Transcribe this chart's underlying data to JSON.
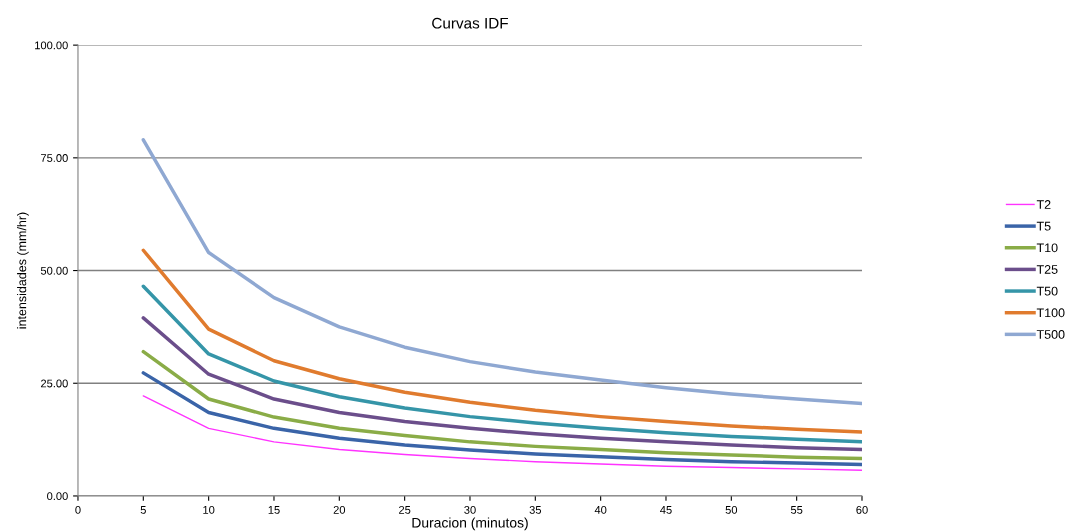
{
  "chart_data": {
    "type": "line",
    "title": "Curvas IDF",
    "xlabel": "Duracion (minutos)",
    "ylabel": "intensidades (mm/hr)",
    "x": [
      5,
      10,
      15,
      20,
      25,
      30,
      35,
      40,
      45,
      50,
      55,
      60
    ],
    "series": [
      {
        "name": "T2",
        "color": "#ff33ff",
        "values": [
          22.2,
          15,
          12,
          10.3,
          9.2,
          8.3,
          7.6,
          7.1,
          6.6,
          6.3,
          6,
          5.7
        ]
      },
      {
        "name": "T5",
        "color": "#3a64a8",
        "values": [
          27.3,
          18.5,
          15,
          12.8,
          11.3,
          10.2,
          9.3,
          8.7,
          8.1,
          7.6,
          7.3,
          7
        ]
      },
      {
        "name": "T10",
        "color": "#8aac47",
        "values": [
          32,
          21.5,
          17.5,
          15,
          13.4,
          12,
          11,
          10.3,
          9.6,
          9.1,
          8.6,
          8.3
        ]
      },
      {
        "name": "T25",
        "color": "#6b4e8b",
        "values": [
          39.5,
          27,
          21.5,
          18.5,
          16.5,
          15,
          13.8,
          12.8,
          12,
          11.3,
          10.7,
          10.3
        ]
      },
      {
        "name": "T50",
        "color": "#3595a8",
        "values": [
          46.5,
          31.5,
          25.5,
          22,
          19.5,
          17.6,
          16.2,
          15,
          14,
          13.2,
          12.6,
          12
        ]
      },
      {
        "name": "T100",
        "color": "#e07b2e",
        "values": [
          54.5,
          37,
          30,
          26,
          23,
          20.8,
          19,
          17.6,
          16.5,
          15.5,
          14.8,
          14.2
        ]
      },
      {
        "name": "T500",
        "color": "#8fa8d2",
        "values": [
          79,
          54,
          44,
          37.5,
          33,
          29.8,
          27.5,
          25.7,
          24,
          22.6,
          21.5,
          20.5
        ]
      }
    ],
    "xlim": [
      0,
      60
    ],
    "xticks": [
      0,
      5,
      10,
      15,
      20,
      25,
      30,
      35,
      40,
      45,
      50,
      55,
      60
    ],
    "ylim": [
      0,
      100
    ],
    "yticks": [
      {
        "value": 0,
        "label": "0.00"
      },
      {
        "value": 25,
        "label": "25.00"
      },
      {
        "value": 50,
        "label": "50.00"
      },
      {
        "value": 75,
        "label": "75.00"
      },
      {
        "value": 100,
        "label": "100.00"
      }
    ],
    "grid": "y",
    "legend": "right",
    "marker": "none",
    "line_style": "solid"
  }
}
